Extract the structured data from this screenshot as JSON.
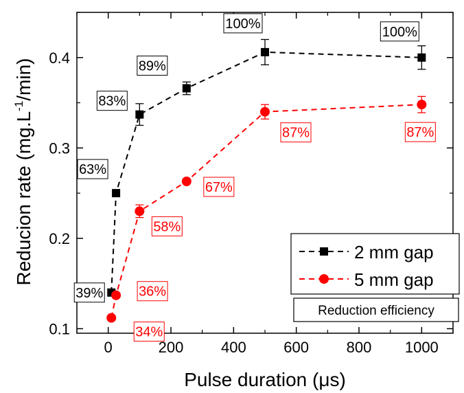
{
  "chart_data": {
    "type": "line",
    "xlabel": "Pulse duration (μs)",
    "ylabel_main": "Reducion rate (mg.L",
    "ylabel_sup": "-1",
    "ylabel_tail": "/min)",
    "xlim": [
      -100,
      1100
    ],
    "ylim": [
      0.095,
      0.45
    ],
    "xticks": [
      0,
      200,
      400,
      600,
      800,
      1000
    ],
    "xtick_labels": [
      "0",
      "200",
      "400",
      "600",
      "800",
      "1000"
    ],
    "yticks": [
      0.1,
      0.2,
      0.3,
      0.4
    ],
    "ytick_labels": [
      "0.1",
      "0.2",
      "0.3",
      "0.4"
    ],
    "series": [
      {
        "name": "2 mm gap",
        "marker": "square",
        "color": "#000000",
        "x": [
          10,
          25,
          100,
          250,
          500,
          1000
        ],
        "y": [
          0.14,
          0.25,
          0.337,
          0.366,
          0.406,
          0.4
        ],
        "yerr": [
          0.0,
          0.0,
          0.012,
          0.007,
          0.014,
          0.013
        ],
        "labels": [
          "39%",
          "63%",
          "83%",
          "89%",
          "100%",
          "100%"
        ]
      },
      {
        "name": "5 mm gap",
        "marker": "circle",
        "color": "#ff0000",
        "x": [
          10,
          25,
          100,
          250,
          500,
          1000
        ],
        "y": [
          0.112,
          0.137,
          0.23,
          0.263,
          0.34,
          0.348
        ],
        "yerr": [
          0.0,
          0.0,
          0.007,
          0.0,
          0.008,
          0.009
        ],
        "labels": [
          "34%",
          "36%",
          "58%",
          "67%",
          "87%",
          "87%"
        ]
      }
    ],
    "legend_position": "bottom-right",
    "annotation": "Reduction efficiency"
  }
}
